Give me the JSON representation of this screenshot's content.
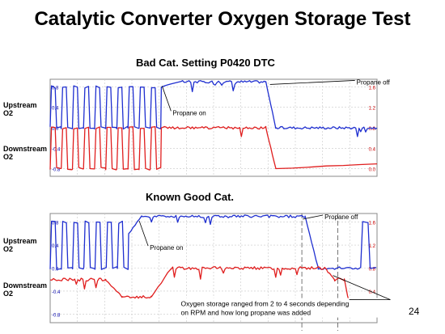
{
  "slide": {
    "title": "Catalytic Converter Oxygen Storage Test",
    "page_number": "24"
  },
  "colors": {
    "upstream": "#1f2fd0",
    "downstream": "#e01e1e",
    "grid": "#c8c8c8",
    "frame": "#888888"
  },
  "chart_data": [
    {
      "type": "line",
      "title": "Bad Cat. Setting P0420 DTC",
      "grid": true,
      "y_left": {
        "ticks": [
          "0.8",
          "0.4",
          "0.0",
          "-0.4",
          "-0.8"
        ]
      },
      "y_right": {
        "ticks": [
          "1.6",
          "1.2",
          "0.8",
          "0.4",
          "0.0"
        ]
      },
      "series": [
        {
          "name": "Upstream O2",
          "label_lines": [
            "Upstream",
            "O2"
          ],
          "color": "#1f2fd0",
          "segments": [
            {
              "x": [
                0,
                0.34
              ],
              "pattern": "square",
              "cycles": 10,
              "low": 0.0,
              "high": 0.8
            },
            {
              "x": [
                0.34,
                0.4
              ],
              "pattern": "ramp",
              "from": 0.8,
              "to": 0.9
            },
            {
              "x": [
                0.4,
                0.66
              ],
              "pattern": "flat",
              "level": 0.9
            },
            {
              "x": [
                0.66,
                0.69
              ],
              "pattern": "drop",
              "from": 0.9,
              "to": 0.0
            },
            {
              "x": [
                0.69,
                1.0
              ],
              "pattern": "flat",
              "level": 0.0
            }
          ]
        },
        {
          "name": "Downstream O2",
          "label_lines": [
            "Downstream",
            "O2"
          ],
          "color": "#e01e1e",
          "segments": [
            {
              "x": [
                0,
                0.34
              ],
              "pattern": "square",
              "cycles": 10,
              "low": -0.8,
              "high": 0.0
            },
            {
              "x": [
                0.34,
                0.66
              ],
              "pattern": "flat",
              "level": 0.0
            },
            {
              "x": [
                0.66,
                0.69
              ],
              "pattern": "drop",
              "from": 0.0,
              "to": -0.8
            },
            {
              "x": [
                0.69,
                1.0
              ],
              "pattern": "ramp",
              "from": -0.8,
              "to": -0.7
            }
          ]
        }
      ],
      "annotations": [
        {
          "text": "Propane on",
          "at_x": 0.34,
          "at_y": 0.85
        },
        {
          "text": "Propane off",
          "at_x": 0.67,
          "at_y": 0.88
        }
      ],
      "markers": []
    },
    {
      "type": "line",
      "title": "Known Good Cat.",
      "grid": true,
      "y_left": {
        "ticks": [
          "0.8",
          "0.4",
          "0.0",
          "-0.4",
          "-0.8"
        ]
      },
      "y_right": {
        "ticks": [
          "1.6",
          "1.2",
          "0.8",
          "0.4",
          "0.0"
        ]
      },
      "series": [
        {
          "name": "Upstream O2",
          "label_lines": [
            "Upstream",
            "O2"
          ],
          "color": "#1f2fd0",
          "segments": [
            {
              "x": [
                0,
                0.24
              ],
              "pattern": "square",
              "cycles": 7,
              "low": 0.0,
              "high": 0.8
            },
            {
              "x": [
                0.24,
                0.28
              ],
              "pattern": "ramp",
              "from": 0.6,
              "to": 0.9
            },
            {
              "x": [
                0.28,
                0.78
              ],
              "pattern": "flat",
              "level": 0.9
            },
            {
              "x": [
                0.78,
                0.82
              ],
              "pattern": "drop",
              "from": 0.9,
              "to": 0.0
            },
            {
              "x": [
                0.82,
                0.95
              ],
              "pattern": "flat",
              "level": 0.0
            },
            {
              "x": [
                0.95,
                1.0
              ],
              "pattern": "square",
              "cycles": 1,
              "low": 0.0,
              "high": 0.8
            }
          ]
        },
        {
          "name": "Downstream O2",
          "label_lines": [
            "Downstream",
            "O2"
          ],
          "color": "#e01e1e",
          "segments": [
            {
              "x": [
                0,
                0.17
              ],
              "pattern": "flat",
              "level": -0.2
            },
            {
              "x": [
                0.17,
                0.22
              ],
              "pattern": "drop",
              "from": -0.2,
              "to": -0.5
            },
            {
              "x": [
                0.22,
                0.31
              ],
              "pattern": "flat",
              "level": -0.5
            },
            {
              "x": [
                0.31,
                0.37
              ],
              "pattern": "ramp",
              "from": -0.5,
              "to": 0.0
            },
            {
              "x": [
                0.37,
                0.84
              ],
              "pattern": "flat",
              "level": 0.0
            },
            {
              "x": [
                0.84,
                0.87
              ],
              "pattern": "drop",
              "from": 0.0,
              "to": -0.2
            },
            {
              "x": [
                0.87,
                0.9
              ],
              "pattern": "flat",
              "level": -0.2
            },
            {
              "x": [
                0.9,
                0.92
              ],
              "pattern": "drop",
              "from": -0.2,
              "to": -0.75
            },
            {
              "x": [
                0.92,
                1.0
              ],
              "pattern": "flat",
              "level": -0.75
            }
          ]
        }
      ],
      "annotations": [
        {
          "text": "Propane on",
          "at_x": 0.27,
          "at_y": 0.85
        },
        {
          "text": "Propane off",
          "at_x": 0.77,
          "at_y": 0.88
        },
        {
          "text_lines": [
            "Oxygen storage ranged from 2 to 4 seconds depending",
            "on RPM and how long propane was added"
          ],
          "at_x": 0.87,
          "at_y": -0.1
        }
      ],
      "markers": [
        {
          "x": 0.77
        },
        {
          "x": 0.88
        }
      ]
    }
  ]
}
